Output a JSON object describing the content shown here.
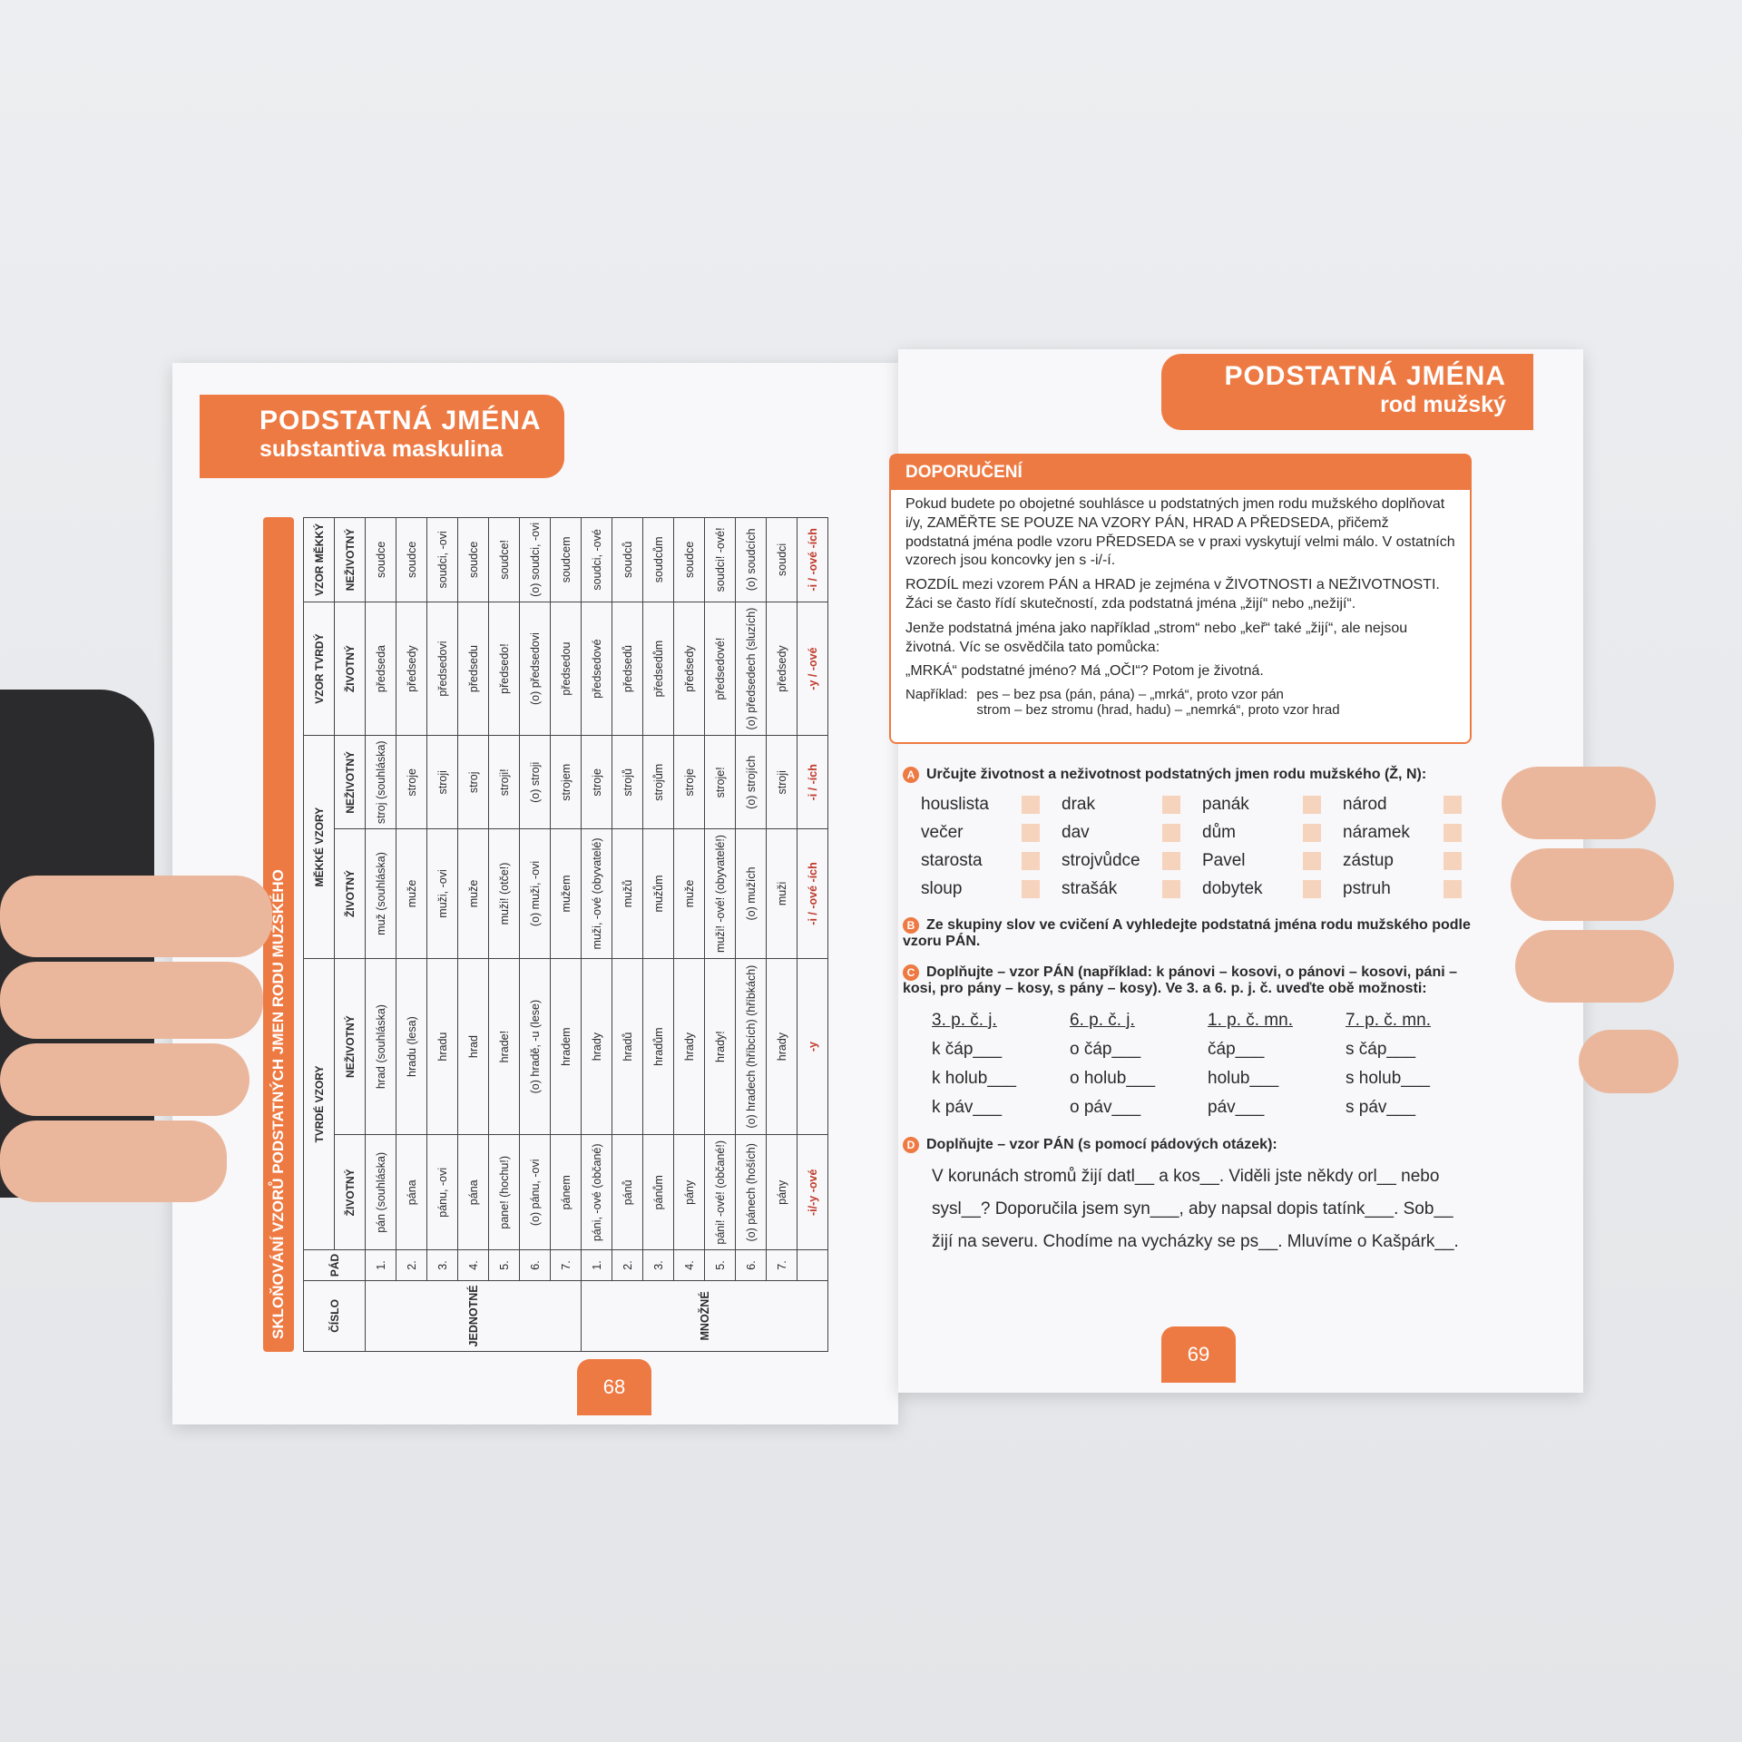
{
  "left_page": {
    "header": {
      "title": "PODSTATNÁ JMÉNA",
      "subtitle": "substantiva maskulina"
    },
    "table": {
      "title": "SKLOŇOVÁNÍ VZORŮ PODSTATNÝCH JMEN RODU MUŽSKÉHO",
      "head_number": "ČÍSLO",
      "head_case": "PÁD",
      "head_groups": [
        "TVRDÉ VZORY",
        "MĚKKÉ VZORY",
        "VZOR TVRDÝ",
        "VZOR MĚKKÝ"
      ],
      "head_sub": [
        "ŽIVOTNÝ",
        "NEŽIVOTNÝ",
        "ŽIVOTNÝ",
        "NEŽIVOTNÝ",
        "ŽIVOTNÝ",
        "NEŽIVOTNÝ"
      ],
      "groups": [
        {
          "label": "JEDNOTNÉ",
          "rows": [
            [
              "1.",
              "pán (souhláska)",
              "hrad (souhláska)",
              "muž (souhláska)",
              "stroj (souhláska)",
              "předseda",
              "soudce"
            ],
            [
              "2.",
              "pána",
              "hradu (lesa)",
              "muže",
              "stroje",
              "předsedy",
              "soudce"
            ],
            [
              "3.",
              "pánu, -ovi",
              "hradu",
              "muži, -ovi",
              "stroji",
              "předsedovi",
              "soudci, -ovi"
            ],
            [
              "4.",
              "pána",
              "hrad",
              "muže",
              "stroj",
              "předsedu",
              "soudce"
            ],
            [
              "5.",
              "pane! (hochu!)",
              "hrade!",
              "muži! (otče!)",
              "stroji!",
              "předsedo!",
              "soudce!"
            ],
            [
              "6.",
              "(o) pánu, -ovi",
              "(o) hradě, -u (lese)",
              "(o) muži, -ovi",
              "(o) stroji",
              "(o) předsedovi",
              "(o) soudci, -ovi"
            ],
            [
              "7.",
              "pánem",
              "hradem",
              "mužem",
              "strojem",
              "předsedou",
              "soudcem"
            ]
          ]
        },
        {
          "label": "MNOŽNÉ",
          "rows": [
            [
              "1.",
              "páni, -ové (občané)",
              "hrady",
              "muži, -ové (obyvatelé)",
              "stroje",
              "předsedové",
              "soudci, -ové"
            ],
            [
              "2.",
              "pánů",
              "hradů",
              "mužů",
              "strojů",
              "předsedů",
              "soudců"
            ],
            [
              "3.",
              "pánům",
              "hradům",
              "mužům",
              "strojům",
              "předsedům",
              "soudcům"
            ],
            [
              "4.",
              "pány",
              "hrady",
              "muže",
              "stroje",
              "předsedy",
              "soudce"
            ],
            [
              "5.",
              "páni! -ové! (občané!)",
              "hrady!",
              "muži! -ové! (obyvatelé!)",
              "stroje!",
              "předsedové!",
              "soudci! -ové!"
            ],
            [
              "6.",
              "(o) pánech (hoších)",
              "(o) hradech (hříbcích) (hříbkách)",
              "(o) mužích",
              "(o) strojích",
              "(o) předsedech (sluzích)",
              "(o) soudcích"
            ],
            [
              "7.",
              "pány",
              "hrady",
              "muži",
              "stroji",
              "předsedy",
              "soudci"
            ]
          ],
          "endings": [
            "-i/-y -ové",
            "-y",
            "-i / -ové -ích",
            "-i / -ích",
            "-y / -ové",
            "-i / -ové -ích"
          ]
        }
      ]
    },
    "page_number": "68"
  },
  "right_page": {
    "header": {
      "title": "PODSTATNÁ JMÉNA",
      "subtitle": "rod mužský"
    },
    "box": {
      "title": "DOPORUČENÍ",
      "paragraphs": [
        "Pokud budete po obojetné souhlásce u podstatných jmen rodu mužského doplňovat i/y, ZAMĚŘTE SE POUZE NA VZORY PÁN, HRAD A PŘEDSEDA, přičemž podstatná jména podle vzoru PŘEDSEDA se v praxi vyskytují velmi málo. V ostatních vzorech jsou koncovky jen s -i/-í.",
        "ROZDÍL mezi vzorem PÁN a HRAD je zejména v ŽIVOTNOSTI a NEŽIVOTNOSTI. Žáci se často řídí skutečností, zda podstatná jména „žijí“ nebo „nežijí“.",
        "Jenže podstatná jména jako například „strom“ nebo „keř“ také „žijí“, ale nejsou životná. Víc se osvědčila tato pomůcka:",
        "„MRKÁ“ podstatné jméno? Má „OČI“? Potom je životná."
      ],
      "example_label": "Například:",
      "examples": [
        "pes – bez psa (pán, pána) – „mrká“, proto vzor pán",
        "strom – bez stromu (hrad, hadu) – „nemrká“, proto vzor hrad"
      ]
    },
    "exercises": [
      {
        "letter": "A",
        "text": "Určujte životnost a neživotnost podstatných jmen rodu mužského (Ž, N):",
        "words": [
          "houslista",
          "večer",
          "starosta",
          "sloup",
          "drak",
          "dav",
          "strojvůdce",
          "strašák",
          "panák",
          "dům",
          "Pavel",
          "dobytek",
          "národ",
          "náramek",
          "zástup",
          "pstruh"
        ]
      },
      {
        "letter": "B",
        "text": "Ze skupiny slov ve cvičení A vyhledejte podstatná jména rodu mužského podle vzoru PÁN."
      },
      {
        "letter": "C",
        "text": "Doplňujte – vzor PÁN (například: k pánovi – kosovi, o pánovi – kosovi, páni – kosi, pro pány – kosy, s pány – kosy). Ve 3. a 6. p. j. č. uveďte obě možnosti:",
        "columns": [
          {
            "head": "3. p. č. j.",
            "items": [
              "k čáp___",
              "k holub___",
              "k páv___"
            ]
          },
          {
            "head": "6. p. č. j.",
            "items": [
              "o čáp___",
              "o holub___",
              "o páv___"
            ]
          },
          {
            "head": "1. p. č. mn.",
            "items": [
              "čáp___",
              "holub___",
              "páv___"
            ]
          },
          {
            "head": "7. p. č. mn.",
            "items": [
              "s čáp___",
              "s holub___",
              "s páv___"
            ]
          }
        ]
      },
      {
        "letter": "D",
        "text": "Doplňujte – vzor PÁN (s pomocí pádových otázek):",
        "body": "V korunách stromů žijí datl__ a kos__. Viděli jste někdy orl__ nebo sysl__? Doporučila jsem syn___, aby napsal dopis tatínk___. Sob__ žijí na severu. Chodíme na vycházky se ps__. Mluvíme o Kašpárk__."
      }
    ],
    "page_number": "69"
  }
}
